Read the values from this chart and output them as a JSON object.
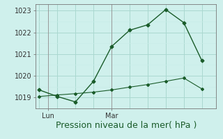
{
  "xlabel": "Pression niveau de la mer( hPa )",
  "bg_color": "#cff0ec",
  "grid_color_major": "#aad8d0",
  "grid_color_minor": "#c8ece8",
  "line_color": "#1a5c2a",
  "ylim": [
    1018.6,
    1023.3
  ],
  "xlim": [
    -0.2,
    9.8
  ],
  "line1_x": [
    0,
    1,
    2,
    3,
    4,
    5,
    6,
    7,
    8,
    9
  ],
  "line1_y": [
    1019.35,
    1019.05,
    1018.8,
    1019.75,
    1021.35,
    1022.1,
    1022.35,
    1023.05,
    1022.45,
    1020.7
  ],
  "line2_x": [
    0,
    1,
    2,
    3,
    4,
    5,
    6,
    7,
    8,
    9
  ],
  "line2_y": [
    1019.05,
    1019.12,
    1019.18,
    1019.25,
    1019.35,
    1019.48,
    1019.6,
    1019.75,
    1019.9,
    1019.4
  ],
  "xtick_positions": [
    0.5,
    4.0
  ],
  "xtick_labels": [
    "Lun",
    "Mar"
  ],
  "ytick_positions": [
    1019,
    1020,
    1021,
    1022,
    1023
  ],
  "vline_positions": [
    0.5,
    4.0
  ],
  "xlabel_fontsize": 9,
  "tick_fontsize": 7,
  "figsize": [
    3.2,
    2.0
  ],
  "dpi": 100
}
